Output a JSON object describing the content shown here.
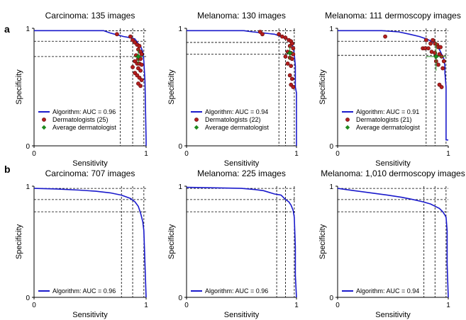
{
  "figure": {
    "panel_labels": [
      "a",
      "b"
    ],
    "colors": {
      "algorithm": "#1a1acc",
      "dermatologist": "#b41e1e",
      "dermatologist_edge": "#5a0a0a",
      "average": "#1e8a1e",
      "axis": "#000000"
    }
  },
  "chart_data": [
    {
      "type": "line",
      "title": "Carcinoma: 135 images",
      "xlabel": "Sensitivity",
      "ylabel": "Specificity",
      "xlim": [
        0,
        1
      ],
      "ylim": [
        0,
        1
      ],
      "xticks": [
        "0",
        "1"
      ],
      "yticks": [
        "0",
        "1"
      ],
      "guides": {
        "x": [
          0.77,
          0.88,
          0.98
        ],
        "y": [
          0.76,
          0.89,
          0.98
        ]
      },
      "algorithm_label": "Algorithm: AUC = 0.96",
      "dermatologists_label": "Dermatologists (25)",
      "average_label": "Average dermatologist",
      "roc": [
        [
          0,
          0.98
        ],
        [
          0.62,
          0.98
        ],
        [
          0.68,
          0.96
        ],
        [
          0.72,
          0.95
        ],
        [
          0.8,
          0.93
        ],
        [
          0.86,
          0.92
        ],
        [
          0.9,
          0.91
        ],
        [
          0.93,
          0.87
        ],
        [
          0.95,
          0.85
        ],
        [
          0.97,
          0.8
        ],
        [
          0.98,
          0.72
        ],
        [
          0.99,
          0.55
        ],
        [
          0.995,
          0.3
        ],
        [
          1,
          0.05
        ],
        [
          1,
          0
        ]
      ],
      "dermatologists": [
        [
          0.74,
          0.95
        ],
        [
          0.86,
          0.93
        ],
        [
          0.88,
          0.9
        ],
        [
          0.9,
          0.88
        ],
        [
          0.92,
          0.86
        ],
        [
          0.94,
          0.85
        ],
        [
          0.93,
          0.82
        ],
        [
          0.95,
          0.8
        ],
        [
          0.96,
          0.78
        ],
        [
          0.91,
          0.77
        ],
        [
          0.93,
          0.74
        ],
        [
          0.95,
          0.74
        ],
        [
          0.9,
          0.72
        ],
        [
          0.92,
          0.7
        ],
        [
          0.94,
          0.7
        ],
        [
          0.96,
          0.69
        ],
        [
          0.88,
          0.67
        ],
        [
          0.93,
          0.66
        ],
        [
          0.95,
          0.64
        ],
        [
          0.9,
          0.62
        ],
        [
          0.92,
          0.6
        ],
        [
          0.94,
          0.58
        ],
        [
          0.96,
          0.56
        ],
        [
          0.93,
          0.53
        ],
        [
          0.95,
          0.51
        ]
      ],
      "average": {
        "x": 0.93,
        "y": 0.76,
        "xerr": 0.04,
        "yerr": 0.06
      }
    },
    {
      "type": "line",
      "title": "Melanoma: 130 images",
      "xlabel": "Sensitivity",
      "ylabel": "Specificity",
      "xlim": [
        0,
        1
      ],
      "ylim": [
        0,
        1
      ],
      "xticks": [
        "0",
        "1"
      ],
      "yticks": [
        "0",
        "1"
      ],
      "guides": {
        "x": [
          0.84,
          0.9,
          0.98
        ],
        "y": [
          0.78,
          0.88,
          0.98
        ]
      },
      "algorithm_label": "Algorithm: AUC = 0.94",
      "dermatologists_label": "Dermatologists (22)",
      "average_label": "Average dermatologist",
      "roc": [
        [
          0,
          0.98
        ],
        [
          0.52,
          0.98
        ],
        [
          0.6,
          0.97
        ],
        [
          0.7,
          0.96
        ],
        [
          0.8,
          0.95
        ],
        [
          0.86,
          0.93
        ],
        [
          0.9,
          0.92
        ],
        [
          0.93,
          0.9
        ],
        [
          0.95,
          0.88
        ],
        [
          0.97,
          0.84
        ],
        [
          0.98,
          0.78
        ],
        [
          0.99,
          0.68
        ],
        [
          0.99,
          0.5
        ],
        [
          1,
          0.45
        ],
        [
          1,
          0
        ]
      ],
      "dermatologists": [
        [
          0.67,
          0.97
        ],
        [
          0.69,
          0.95
        ],
        [
          0.84,
          0.95
        ],
        [
          0.87,
          0.93
        ],
        [
          0.9,
          0.92
        ],
        [
          0.93,
          0.9
        ],
        [
          0.95,
          0.89
        ],
        [
          0.96,
          0.87
        ],
        [
          0.94,
          0.85
        ],
        [
          0.97,
          0.83
        ],
        [
          0.92,
          0.8
        ],
        [
          0.95,
          0.79
        ],
        [
          0.97,
          0.78
        ],
        [
          0.9,
          0.76
        ],
        [
          0.94,
          0.75
        ],
        [
          0.96,
          0.74
        ],
        [
          0.92,
          0.7
        ],
        [
          0.95,
          0.68
        ],
        [
          0.94,
          0.6
        ],
        [
          0.96,
          0.57
        ],
        [
          0.95,
          0.52
        ],
        [
          0.97,
          0.5
        ]
      ],
      "average": {
        "x": 0.94,
        "y": 0.79,
        "xerr": 0.03,
        "yerr": 0.06
      }
    },
    {
      "type": "line",
      "title": "Melanoma: 111 dermoscopy images",
      "xlabel": "Sensitivity",
      "ylabel": "Specificity",
      "xlim": [
        0,
        1
      ],
      "ylim": [
        0,
        1
      ],
      "xticks": [
        "0",
        "1"
      ],
      "yticks": [
        "0",
        "1"
      ],
      "guides": {
        "x": [
          0.8,
          0.88,
          0.98
        ],
        "y": [
          0.77,
          0.89,
          0.98
        ]
      },
      "algorithm_label": "Algorithm: AUC = 0.91",
      "dermatologists_label": "Dermatologists (21)",
      "average_label": "Average dermatologist",
      "roc": [
        [
          0,
          0.98
        ],
        [
          0.4,
          0.98
        ],
        [
          0.55,
          0.97
        ],
        [
          0.65,
          0.95
        ],
        [
          0.74,
          0.93
        ],
        [
          0.8,
          0.91
        ],
        [
          0.85,
          0.89
        ],
        [
          0.88,
          0.87
        ],
        [
          0.9,
          0.85
        ],
        [
          0.92,
          0.82
        ],
        [
          0.94,
          0.78
        ],
        [
          0.96,
          0.74
        ],
        [
          0.97,
          0.68
        ],
        [
          0.97,
          0.62
        ],
        [
          0.98,
          0.5
        ],
        [
          0.98,
          0.2
        ],
        [
          0.98,
          0.05
        ],
        [
          1,
          0.05
        ]
      ],
      "dermatologists": [
        [
          0.43,
          0.93
        ],
        [
          0.8,
          0.9
        ],
        [
          0.86,
          0.9
        ],
        [
          0.84,
          0.87
        ],
        [
          0.88,
          0.87
        ],
        [
          0.9,
          0.86
        ],
        [
          0.77,
          0.83
        ],
        [
          0.79,
          0.83
        ],
        [
          0.82,
          0.83
        ],
        [
          0.91,
          0.84
        ],
        [
          0.93,
          0.84
        ],
        [
          0.85,
          0.8
        ],
        [
          0.88,
          0.79
        ],
        [
          0.92,
          0.78
        ],
        [
          0.94,
          0.76
        ],
        [
          0.96,
          0.72
        ],
        [
          0.89,
          0.72
        ],
        [
          0.91,
          0.69
        ],
        [
          0.95,
          0.66
        ],
        [
          0.92,
          0.52
        ],
        [
          0.94,
          0.5
        ]
      ],
      "average": {
        "x": 0.89,
        "y": 0.76,
        "xerr": 0.09,
        "yerr": 0.12
      }
    },
    {
      "type": "line",
      "title": "Carcinoma: 707 images",
      "xlabel": "Sensitivity",
      "ylabel": "Specificity",
      "xlim": [
        0,
        1
      ],
      "ylim": [
        0,
        1
      ],
      "xticks": [
        "0",
        "1"
      ],
      "yticks": [
        "0",
        "1"
      ],
      "guides": {
        "x": [
          0.78,
          0.88,
          0.98
        ],
        "y": [
          0.77,
          0.88,
          0.98
        ]
      },
      "algorithm_label": "Algorithm: AUC = 0.96",
      "roc": [
        [
          0,
          0.98
        ],
        [
          0.2,
          0.975
        ],
        [
          0.4,
          0.965
        ],
        [
          0.55,
          0.955
        ],
        [
          0.68,
          0.94
        ],
        [
          0.78,
          0.92
        ],
        [
          0.86,
          0.89
        ],
        [
          0.9,
          0.86
        ],
        [
          0.93,
          0.82
        ],
        [
          0.95,
          0.76
        ],
        [
          0.97,
          0.68
        ],
        [
          0.98,
          0.6
        ],
        [
          0.99,
          0.3
        ],
        [
          1,
          0
        ]
      ]
    },
    {
      "type": "line",
      "title": "Melanoma: 225 images",
      "xlabel": "Sensitivity",
      "ylabel": "Specificity",
      "xlim": [
        0,
        1
      ],
      "ylim": [
        0,
        1
      ],
      "xticks": [
        "0",
        "1"
      ],
      "yticks": [
        "0",
        "1"
      ],
      "guides": {
        "x": [
          0.82,
          0.9,
          0.98
        ],
        "y": [
          0.77,
          0.88,
          0.98
        ]
      },
      "algorithm_label": "Algorithm: AUC = 0.96",
      "roc": [
        [
          0,
          0.99
        ],
        [
          0.3,
          0.985
        ],
        [
          0.5,
          0.98
        ],
        [
          0.62,
          0.97
        ],
        [
          0.7,
          0.96
        ],
        [
          0.8,
          0.93
        ],
        [
          0.86,
          0.92
        ],
        [
          0.9,
          0.88
        ],
        [
          0.93,
          0.86
        ],
        [
          0.95,
          0.83
        ],
        [
          0.97,
          0.78
        ],
        [
          0.98,
          0.72
        ],
        [
          0.99,
          0.45
        ],
        [
          0.99,
          0.2
        ],
        [
          1,
          0
        ]
      ]
    },
    {
      "type": "line",
      "title": "Melanoma: 1,010 dermoscopy images",
      "xlabel": "Sensitivity",
      "ylabel": "Specificity",
      "xlim": [
        0,
        1
      ],
      "ylim": [
        0,
        1
      ],
      "xticks": [
        "0",
        "1"
      ],
      "yticks": [
        "0",
        "1"
      ],
      "guides": {
        "x": [
          0.78,
          0.88,
          0.98
        ],
        "y": [
          0.77,
          0.88,
          0.98
        ]
      },
      "algorithm_label": "Algorithm: AUC = 0.94",
      "roc": [
        [
          0,
          0.98
        ],
        [
          0.15,
          0.96
        ],
        [
          0.3,
          0.94
        ],
        [
          0.45,
          0.92
        ],
        [
          0.58,
          0.9
        ],
        [
          0.68,
          0.88
        ],
        [
          0.77,
          0.86
        ],
        [
          0.84,
          0.84
        ],
        [
          0.88,
          0.82
        ],
        [
          0.92,
          0.8
        ],
        [
          0.95,
          0.77
        ],
        [
          0.97,
          0.74
        ],
        [
          0.98,
          0.72
        ],
        [
          0.99,
          0.6
        ],
        [
          0.99,
          0.3
        ],
        [
          1,
          0
        ]
      ]
    }
  ]
}
